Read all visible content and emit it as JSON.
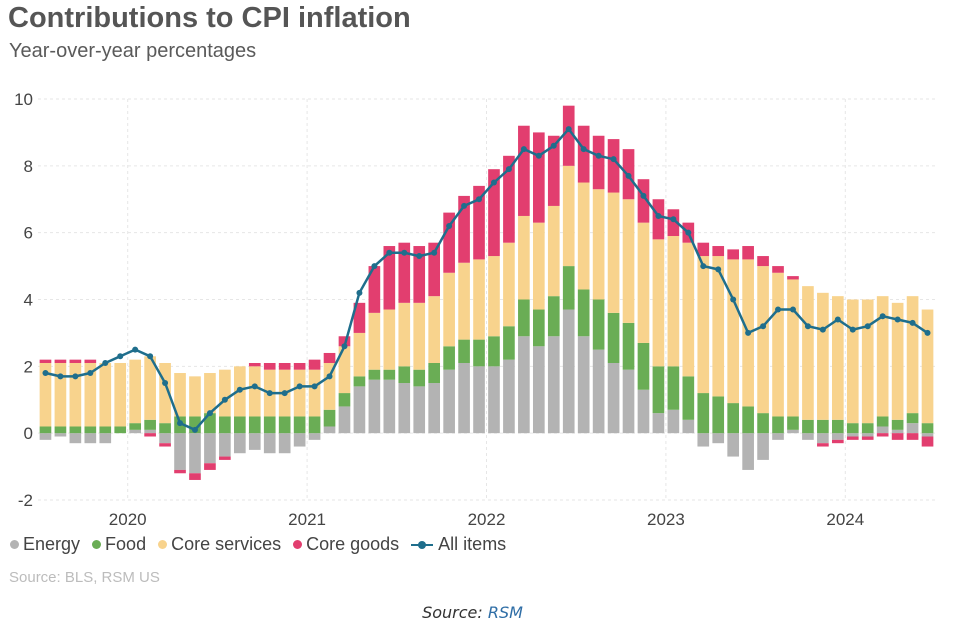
{
  "chart_data": {
    "type": "bar",
    "title": "Contributions to CPI inflation",
    "subtitle": "Year-over-year percentages",
    "stacked": true,
    "ylim": [
      -2,
      10
    ],
    "yticks": [
      -2,
      0,
      2,
      4,
      6,
      8,
      10
    ],
    "xtick_labels": [
      "2020",
      "2021",
      "2022",
      "2023",
      "2024"
    ],
    "grid": true,
    "legend_position": "bottom",
    "x": [
      "2019-07",
      "2019-08",
      "2019-09",
      "2019-10",
      "2019-11",
      "2019-12",
      "2020-01",
      "2020-02",
      "2020-03",
      "2020-04",
      "2020-05",
      "2020-06",
      "2020-07",
      "2020-08",
      "2020-09",
      "2020-10",
      "2020-11",
      "2020-12",
      "2021-01",
      "2021-02",
      "2021-03",
      "2021-04",
      "2021-05",
      "2021-06",
      "2021-07",
      "2021-08",
      "2021-09",
      "2021-10",
      "2021-11",
      "2021-12",
      "2022-01",
      "2022-02",
      "2022-03",
      "2022-04",
      "2022-05",
      "2022-06",
      "2022-07",
      "2022-08",
      "2022-09",
      "2022-10",
      "2022-11",
      "2022-12",
      "2023-01",
      "2023-02",
      "2023-03",
      "2023-04",
      "2023-05",
      "2023-06",
      "2023-07",
      "2023-08",
      "2023-09",
      "2023-10",
      "2023-11",
      "2023-12",
      "2024-01",
      "2024-02",
      "2024-03",
      "2024-04",
      "2024-05",
      "2024-06"
    ],
    "series": [
      {
        "name": "Energy",
        "kind": "bar",
        "color": "#b3b3b3",
        "values": [
          -0.2,
          -0.1,
          -0.3,
          -0.3,
          -0.3,
          0,
          0.1,
          0.1,
          -0.3,
          -1.1,
          -1.2,
          -0.9,
          -0.7,
          -0.6,
          -0.5,
          -0.6,
          -0.6,
          -0.4,
          -0.2,
          0.2,
          0.8,
          1.4,
          1.6,
          1.6,
          1.5,
          1.4,
          1.5,
          1.9,
          2.1,
          2.0,
          2.0,
          2.2,
          2.9,
          2.6,
          2.9,
          3.7,
          2.9,
          2.5,
          2.1,
          1.9,
          1.3,
          0.6,
          0.7,
          0.4,
          -0.4,
          -0.3,
          -0.7,
          -1.1,
          -0.8,
          -0.2,
          0.1,
          -0.2,
          -0.3,
          -0.2,
          -0.1,
          -0.1,
          0.2,
          0.1,
          0.3,
          -0.1
        ]
      },
      {
        "name": "Food",
        "kind": "bar",
        "color": "#6aad55",
        "values": [
          0.2,
          0.2,
          0.2,
          0.2,
          0.2,
          0.2,
          0.2,
          0.3,
          0.3,
          0.5,
          0.5,
          0.6,
          0.5,
          0.5,
          0.5,
          0.5,
          0.5,
          0.5,
          0.5,
          0.5,
          0.4,
          0.3,
          0.3,
          0.3,
          0.5,
          0.5,
          0.6,
          0.7,
          0.7,
          0.8,
          0.9,
          1.0,
          1.1,
          1.1,
          1.2,
          1.3,
          1.4,
          1.5,
          1.5,
          1.4,
          1.4,
          1.4,
          1.3,
          1.3,
          1.2,
          1.1,
          0.9,
          0.8,
          0.6,
          0.5,
          0.4,
          0.4,
          0.4,
          0.4,
          0.3,
          0.3,
          0.3,
          0.3,
          0.3,
          0.3
        ]
      },
      {
        "name": "Core services",
        "kind": "bar",
        "color": "#f8d38d",
        "values": [
          1.9,
          1.9,
          1.9,
          1.9,
          1.9,
          1.9,
          1.9,
          1.9,
          1.8,
          1.3,
          1.2,
          1.2,
          1.4,
          1.5,
          1.5,
          1.4,
          1.4,
          1.4,
          1.4,
          1.4,
          1.4,
          1.3,
          1.7,
          1.8,
          1.9,
          2.0,
          2.0,
          2.2,
          2.3,
          2.4,
          2.4,
          2.5,
          2.5,
          2.6,
          2.7,
          3.0,
          3.2,
          3.3,
          3.6,
          3.7,
          3.6,
          3.8,
          3.9,
          4.0,
          4.1,
          4.2,
          4.3,
          4.4,
          4.4,
          4.3,
          4.1,
          4.0,
          3.8,
          3.7,
          3.7,
          3.7,
          3.6,
          3.5,
          3.5,
          3.4
        ]
      },
      {
        "name": "Core goods",
        "kind": "bar",
        "color": "#e23e6f",
        "values": [
          0.1,
          0.1,
          0.1,
          0.1,
          0,
          0,
          0,
          -0.1,
          -0.1,
          -0.1,
          -0.2,
          -0.2,
          -0.1,
          0,
          0.1,
          0.2,
          0.2,
          0.2,
          0.3,
          0.3,
          0.3,
          0.9,
          1.4,
          1.9,
          1.8,
          1.7,
          1.6,
          1.8,
          2.0,
          2.2,
          2.6,
          2.6,
          2.7,
          2.7,
          2.1,
          1.8,
          1.7,
          1.6,
          1.6,
          1.5,
          1.3,
          1.2,
          0.8,
          0.6,
          0.4,
          0.3,
          0.3,
          0.4,
          0.3,
          0.2,
          0.1,
          0,
          -0.1,
          -0.1,
          -0.1,
          -0.1,
          -0.1,
          -0.2,
          -0.2,
          -0.3
        ]
      },
      {
        "name": "All items",
        "kind": "line",
        "color": "#1f6e8c",
        "values": [
          1.8,
          1.7,
          1.7,
          1.8,
          2.1,
          2.3,
          2.5,
          2.3,
          1.5,
          0.3,
          0.1,
          0.6,
          1.0,
          1.3,
          1.4,
          1.2,
          1.2,
          1.4,
          1.4,
          1.7,
          2.6,
          4.2,
          5.0,
          5.4,
          5.4,
          5.3,
          5.4,
          6.2,
          6.8,
          7.0,
          7.5,
          7.9,
          8.5,
          8.3,
          8.6,
          9.1,
          8.5,
          8.3,
          8.2,
          7.7,
          7.1,
          6.5,
          6.4,
          6.0,
          5.0,
          4.9,
          4.0,
          3.0,
          3.2,
          3.7,
          3.7,
          3.2,
          3.1,
          3.4,
          3.1,
          3.2,
          3.5,
          3.4,
          3.3,
          3.0
        ]
      }
    ]
  },
  "source_note": "Source: BLS, RSM US",
  "footer": {
    "prefix": "Source: ",
    "link_text": "RSM"
  }
}
